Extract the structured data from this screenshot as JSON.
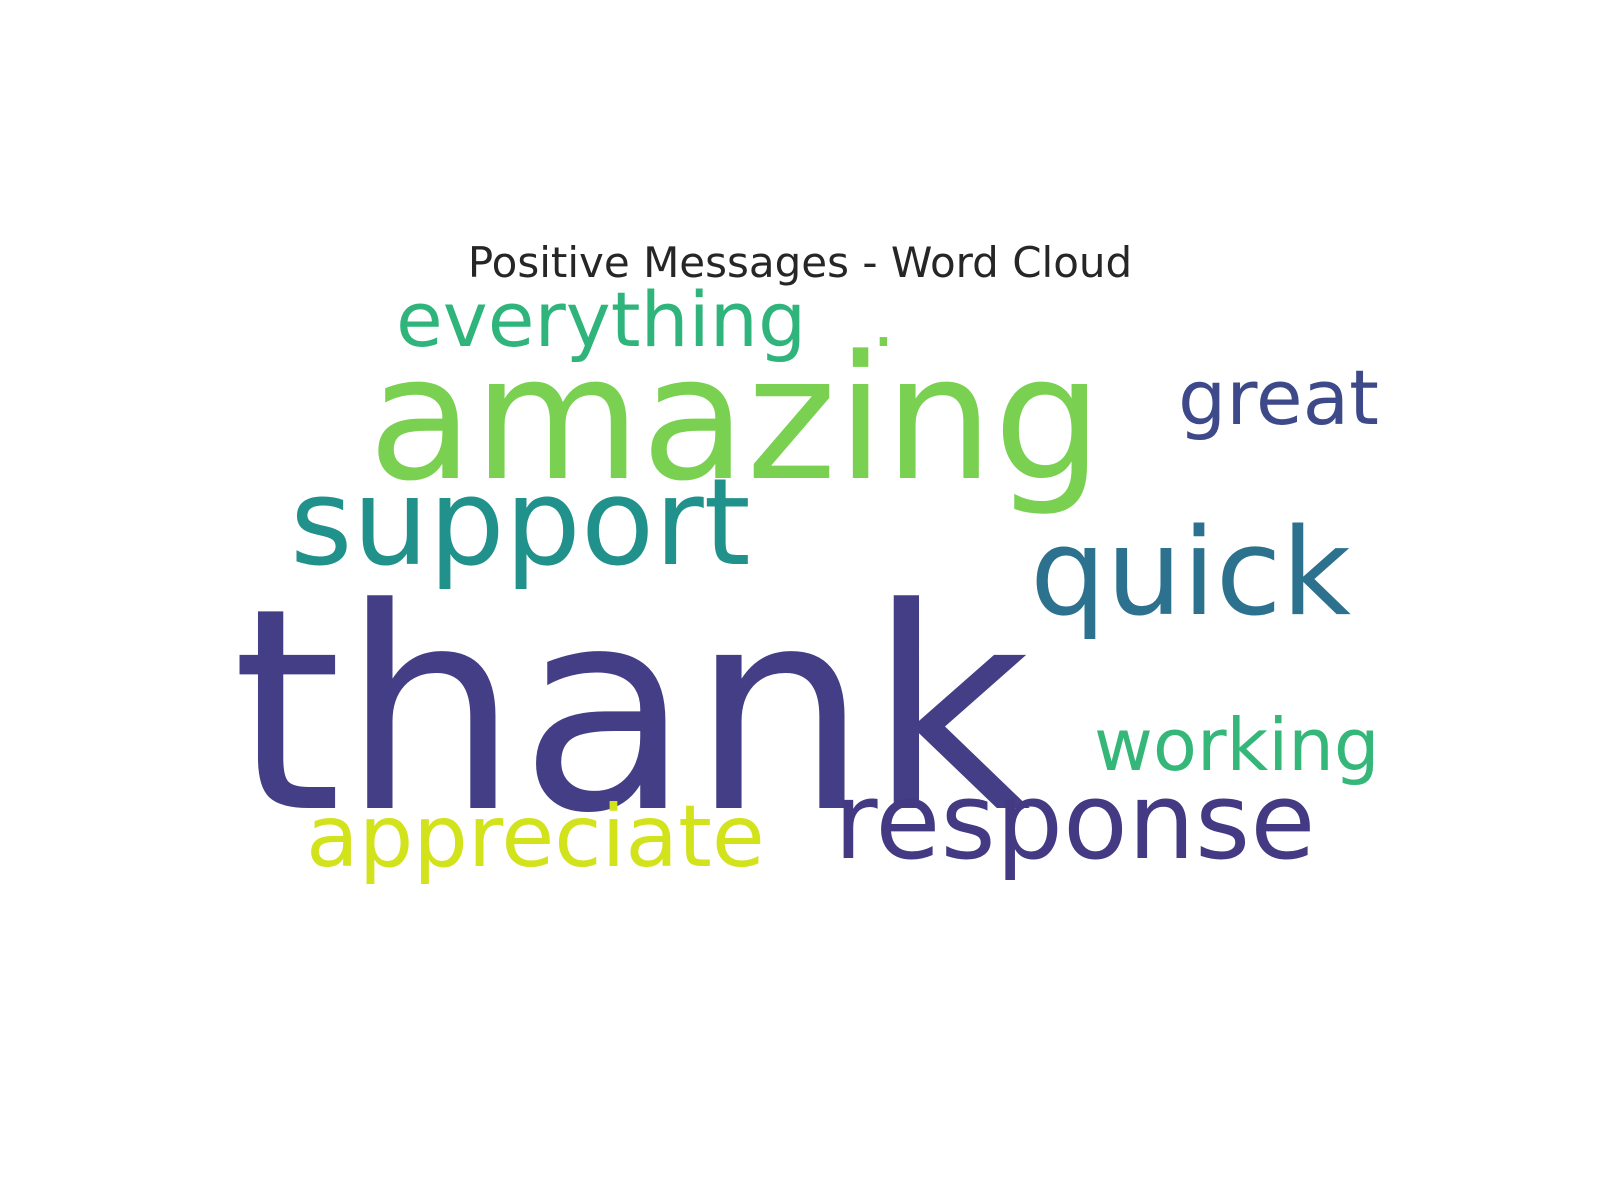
{
  "chart_data": {
    "type": "wordcloud",
    "title": "Positive Messages - Word Cloud",
    "words": [
      {
        "text": "thank",
        "weight": 1.0,
        "color": "#433e85"
      },
      {
        "text": "amazing",
        "weight": 0.78,
        "color": "#7ad151"
      },
      {
        "text": "support",
        "weight": 0.56,
        "color": "#21918c"
      },
      {
        "text": "quick",
        "weight": 0.56,
        "color": "#2c728e"
      },
      {
        "text": "response",
        "weight": 0.5,
        "color": "#443983"
      },
      {
        "text": "appreciate",
        "weight": 0.42,
        "color": "#d2e21b"
      },
      {
        "text": "everything",
        "weight": 0.36,
        "color": "#2fb47c"
      },
      {
        "text": "great",
        "weight": 0.33,
        "color": "#3e4989"
      },
      {
        "text": "working",
        "weight": 0.33,
        "color": "#35b779"
      },
      {
        "text": ".",
        "weight": 0.2,
        "color": "#7ad151"
      }
    ],
    "background": "#ffffff",
    "colormap": "viridis"
  }
}
